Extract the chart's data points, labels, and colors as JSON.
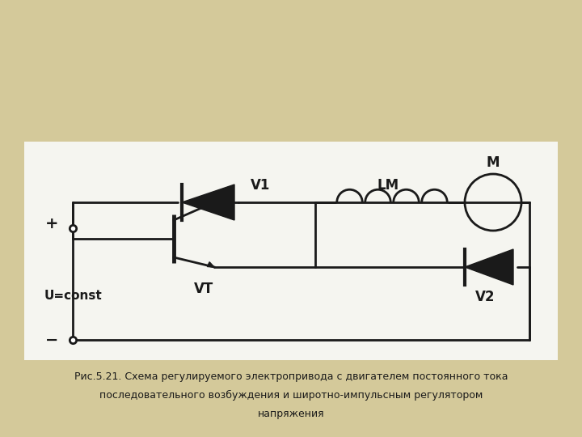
{
  "bg_color": "#d4c99a",
  "panel_color": "#f5f5f0",
  "line_color": "#1a1a1a",
  "line_width": 2.0,
  "title_line1": "Рис.5.21. Схема регулируемого электропривода с двигателем постоянного тока",
  "title_line2": "последовательного возбуждения и широтно-импульсным регулятором",
  "title_line3": "напряжения",
  "label_V1": "V1",
  "label_VT": "VT",
  "label_V2": "V2",
  "label_LM": "LM",
  "label_M": "M",
  "label_plus": "+",
  "label_minus": "−",
  "label_U": "U=const",
  "font_size_labels": 12,
  "font_size_caption": 9.0
}
